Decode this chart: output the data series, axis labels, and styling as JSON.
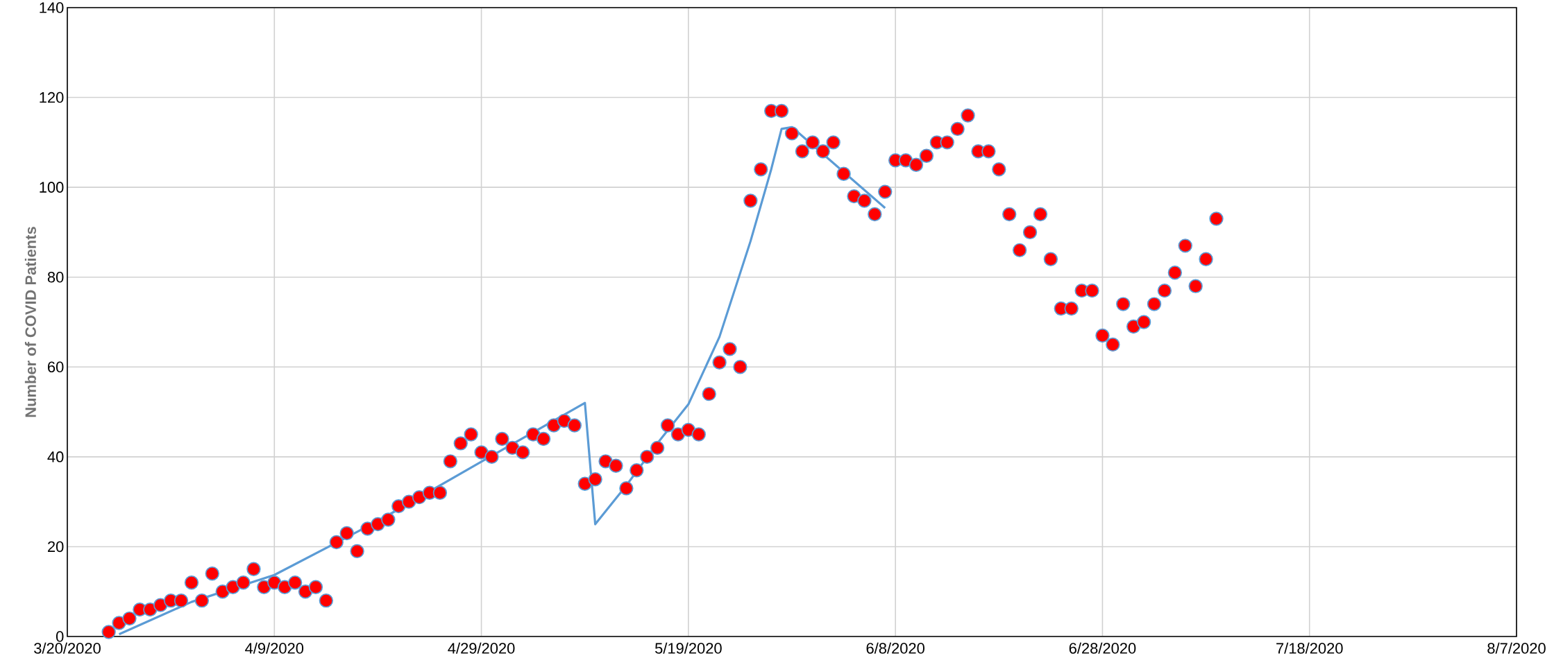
{
  "chart_data": {
    "type": "scatter",
    "ylabel": "Number of COVID Patients",
    "xlim": [
      "2020-03-20",
      "2020-08-07"
    ],
    "xticks": [
      {
        "value": "2020-03-20",
        "label": "3/20/2020"
      },
      {
        "value": "2020-04-09",
        "label": "4/9/2020"
      },
      {
        "value": "2020-04-29",
        "label": "4/29/2020"
      },
      {
        "value": "2020-05-19",
        "label": "5/19/2020"
      },
      {
        "value": "2020-06-08",
        "label": "6/8/2020"
      },
      {
        "value": "2020-06-28",
        "label": "6/28/2020"
      },
      {
        "value": "2020-07-18",
        "label": "7/18/2020"
      },
      {
        "value": "2020-08-07",
        "label": "8/7/2020"
      }
    ],
    "ylim": [
      0,
      140
    ],
    "yticks": [
      0,
      20,
      40,
      60,
      80,
      100,
      120,
      140
    ],
    "grid": true,
    "series": [
      {
        "color": "#ff0000",
        "marker": "circle",
        "x": [
          "2020-03-24",
          "2020-03-25",
          "2020-03-26",
          "2020-03-27",
          "2020-03-28",
          "2020-03-29",
          "2020-03-30",
          "2020-03-31",
          "2020-04-01",
          "2020-04-02",
          "2020-04-03",
          "2020-04-04",
          "2020-04-05",
          "2020-04-06",
          "2020-04-07",
          "2020-04-08",
          "2020-04-09",
          "2020-04-10",
          "2020-04-11",
          "2020-04-12",
          "2020-04-13",
          "2020-04-14",
          "2020-04-15",
          "2020-04-16",
          "2020-04-17",
          "2020-04-18",
          "2020-04-19",
          "2020-04-20",
          "2020-04-21",
          "2020-04-22",
          "2020-04-23",
          "2020-04-24",
          "2020-04-25",
          "2020-04-26",
          "2020-04-27",
          "2020-04-28",
          "2020-04-29",
          "2020-04-30",
          "2020-05-01",
          "2020-05-02",
          "2020-05-03",
          "2020-05-04",
          "2020-05-05",
          "2020-05-06",
          "2020-05-07",
          "2020-05-08",
          "2020-05-09",
          "2020-05-10",
          "2020-05-11",
          "2020-05-12",
          "2020-05-13",
          "2020-05-14",
          "2020-05-15",
          "2020-05-16",
          "2020-05-17",
          "2020-05-18",
          "2020-05-19",
          "2020-05-20",
          "2020-05-21",
          "2020-05-22",
          "2020-05-23",
          "2020-05-24",
          "2020-05-25",
          "2020-05-26",
          "2020-05-27",
          "2020-05-28",
          "2020-05-29",
          "2020-05-30",
          "2020-05-31",
          "2020-06-01",
          "2020-06-02",
          "2020-06-03",
          "2020-06-04",
          "2020-06-05",
          "2020-06-06",
          "2020-06-07",
          "2020-06-08",
          "2020-06-09",
          "2020-06-10",
          "2020-06-11",
          "2020-06-12",
          "2020-06-13",
          "2020-06-14",
          "2020-06-15",
          "2020-06-16",
          "2020-06-17",
          "2020-06-18",
          "2020-06-19",
          "2020-06-20",
          "2020-06-21",
          "2020-06-22",
          "2020-06-23",
          "2020-06-24",
          "2020-06-25",
          "2020-06-26",
          "2020-06-27",
          "2020-06-28",
          "2020-06-29",
          "2020-06-30",
          "2020-07-01",
          "2020-07-02",
          "2020-07-03",
          "2020-07-04",
          "2020-07-05",
          "2020-07-06",
          "2020-07-07",
          "2020-07-08",
          "2020-07-09"
        ],
        "values": [
          1,
          3,
          4,
          6,
          6,
          7,
          8,
          8,
          12,
          8,
          14,
          10,
          11,
          12,
          15,
          11,
          12,
          11,
          12,
          10,
          11,
          8,
          21,
          23,
          19,
          24,
          25,
          26,
          29,
          30,
          31,
          32,
          32,
          39,
          43,
          45,
          41,
          40,
          44,
          42,
          41,
          45,
          44,
          47,
          48,
          47,
          34,
          35,
          39,
          38,
          33,
          37,
          40,
          42,
          47,
          45,
          46,
          45,
          54,
          61,
          64,
          60,
          97,
          104,
          117,
          117,
          112,
          108,
          110,
          108,
          110,
          103,
          98,
          97,
          94,
          99,
          106,
          106,
          105,
          107,
          110,
          110,
          113,
          116,
          108,
          108,
          104,
          94,
          86,
          90,
          94,
          84,
          73,
          73,
          77,
          77,
          67,
          65,
          74,
          69,
          70,
          74,
          77,
          81,
          87,
          78,
          84,
          93
        ]
      },
      {
        "type": "line",
        "color": "#5b9bd5",
        "marker": "none",
        "line_style": "solid",
        "x": [
          "2020-03-25",
          "2020-04-01",
          "2020-04-09",
          "2020-04-19",
          "2020-04-29",
          "2020-05-09",
          "2020-05-10",
          "2020-05-13",
          "2020-05-16",
          "2020-05-19",
          "2020-05-22",
          "2020-05-25",
          "2020-05-27",
          "2020-05-28",
          "2020-05-29",
          "2020-06-07"
        ],
        "values": [
          0.5,
          7.7,
          13.7,
          25.7,
          38.9,
          52,
          25,
          33.6,
          43,
          51.7,
          66.7,
          88,
          104,
          113,
          113.4,
          95.4
        ]
      }
    ]
  }
}
